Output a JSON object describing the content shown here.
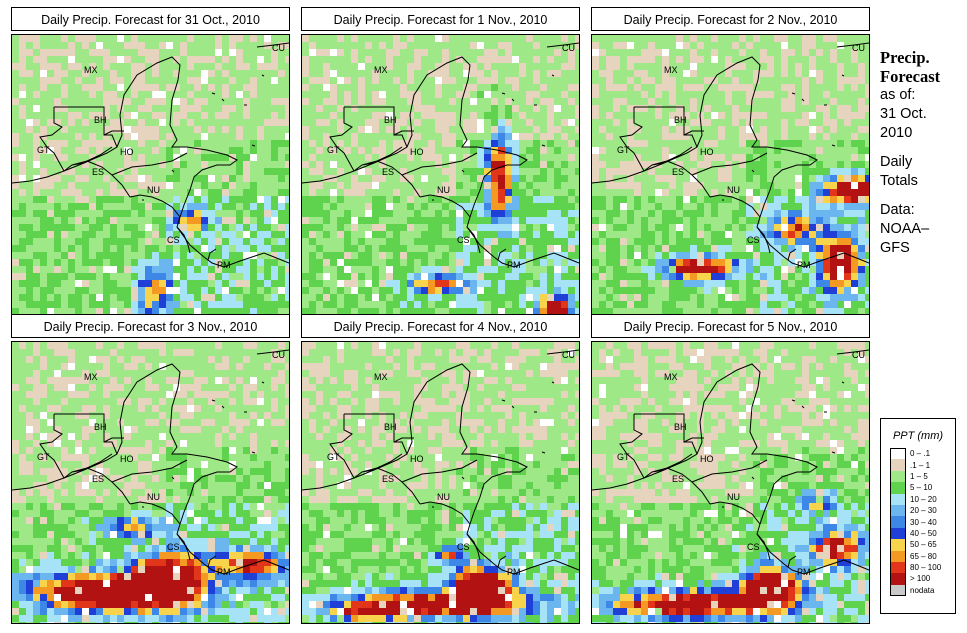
{
  "panels": [
    {
      "title": "Daily Precip. Forecast for  31 Oct., 2010",
      "seed": 11,
      "rain": [
        [
          0.5,
          0.9,
          0.06,
          0.1,
          0.55
        ],
        [
          0.63,
          0.65,
          0.07,
          0.04,
          0.45
        ]
      ]
    },
    {
      "title": "Daily Precip. Forecast for  1 Nov., 2010",
      "seed": 23,
      "rain": [
        [
          0.7,
          0.48,
          0.05,
          0.14,
          0.8
        ],
        [
          0.9,
          0.97,
          0.06,
          0.05,
          0.85
        ],
        [
          0.47,
          0.88,
          0.1,
          0.04,
          0.6
        ]
      ]
    },
    {
      "title": "Daily Precip. Forecast for  2 Nov., 2010",
      "seed": 37,
      "rain": [
        [
          0.38,
          0.82,
          0.13,
          0.04,
          0.9
        ],
        [
          0.88,
          0.8,
          0.07,
          0.09,
          0.95
        ],
        [
          0.93,
          0.54,
          0.12,
          0.05,
          0.9
        ],
        [
          0.72,
          0.68,
          0.09,
          0.05,
          0.55
        ]
      ]
    },
    {
      "title": "Daily Precip. Forecast for  3 Nov., 2010",
      "seed": 41,
      "rain": [
        [
          0.32,
          0.88,
          0.26,
          0.07,
          1.0
        ],
        [
          0.55,
          0.83,
          0.12,
          0.09,
          1.0
        ],
        [
          0.85,
          0.78,
          0.12,
          0.05,
          0.7
        ],
        [
          0.42,
          0.65,
          0.1,
          0.04,
          0.5
        ]
      ]
    },
    {
      "title": "Daily Precip. Forecast for  4 Nov., 2010",
      "seed": 53,
      "rain": [
        [
          0.45,
          0.92,
          0.35,
          0.05,
          0.75
        ],
        [
          0.63,
          0.86,
          0.1,
          0.07,
          1.0
        ],
        [
          0.22,
          0.95,
          0.14,
          0.03,
          0.5
        ],
        [
          0.52,
          0.75,
          0.05,
          0.03,
          0.55
        ]
      ]
    },
    {
      "title": "Daily Precip. Forecast for  5 Nov., 2010",
      "seed": 67,
      "rain": [
        [
          0.35,
          0.92,
          0.3,
          0.05,
          0.9
        ],
        [
          0.63,
          0.86,
          0.1,
          0.06,
          1.0
        ],
        [
          0.87,
          0.72,
          0.09,
          0.06,
          0.75
        ],
        [
          0.8,
          0.55,
          0.07,
          0.04,
          0.45
        ]
      ]
    }
  ],
  "regions": [
    "MX",
    "BH",
    "GT",
    "HO",
    "ES",
    "NU",
    "CS",
    "PM",
    "CU"
  ],
  "sidebar": {
    "line1": "Precip.",
    "line2": "Forecast",
    "asof": "as of:",
    "date1": "31 Oct.",
    "date2": "2010",
    "totals1": "Daily",
    "totals2": "Totals",
    "data1": "Data:",
    "data2": "NOAA–",
    "data3": "GFS"
  },
  "legend": {
    "title": "PPT (mm)",
    "items": [
      {
        "label": "0 – .1",
        "color": "#ffffff"
      },
      {
        "label": ".1 – 1",
        "color": "#e7d4be"
      },
      {
        "label": "1 – 5",
        "color": "#9ee887"
      },
      {
        "label": "5 – 10",
        "color": "#5fd24e"
      },
      {
        "label": "10 – 20",
        "color": "#a7e3f7"
      },
      {
        "label": "20 – 30",
        "color": "#6bb6ef"
      },
      {
        "label": "30 – 40",
        "color": "#3d87e6"
      },
      {
        "label": "40 – 50",
        "color": "#1f3fd6"
      },
      {
        "label": "50 – 65",
        "color": "#f7d44c"
      },
      {
        "label": "65 – 80",
        "color": "#f49a22"
      },
      {
        "label": "80 – 100",
        "color": "#e2361a"
      },
      {
        "label": "> 100",
        "color": "#b31212"
      },
      {
        "label": "nodata",
        "color": "#c9c9c9"
      }
    ]
  }
}
